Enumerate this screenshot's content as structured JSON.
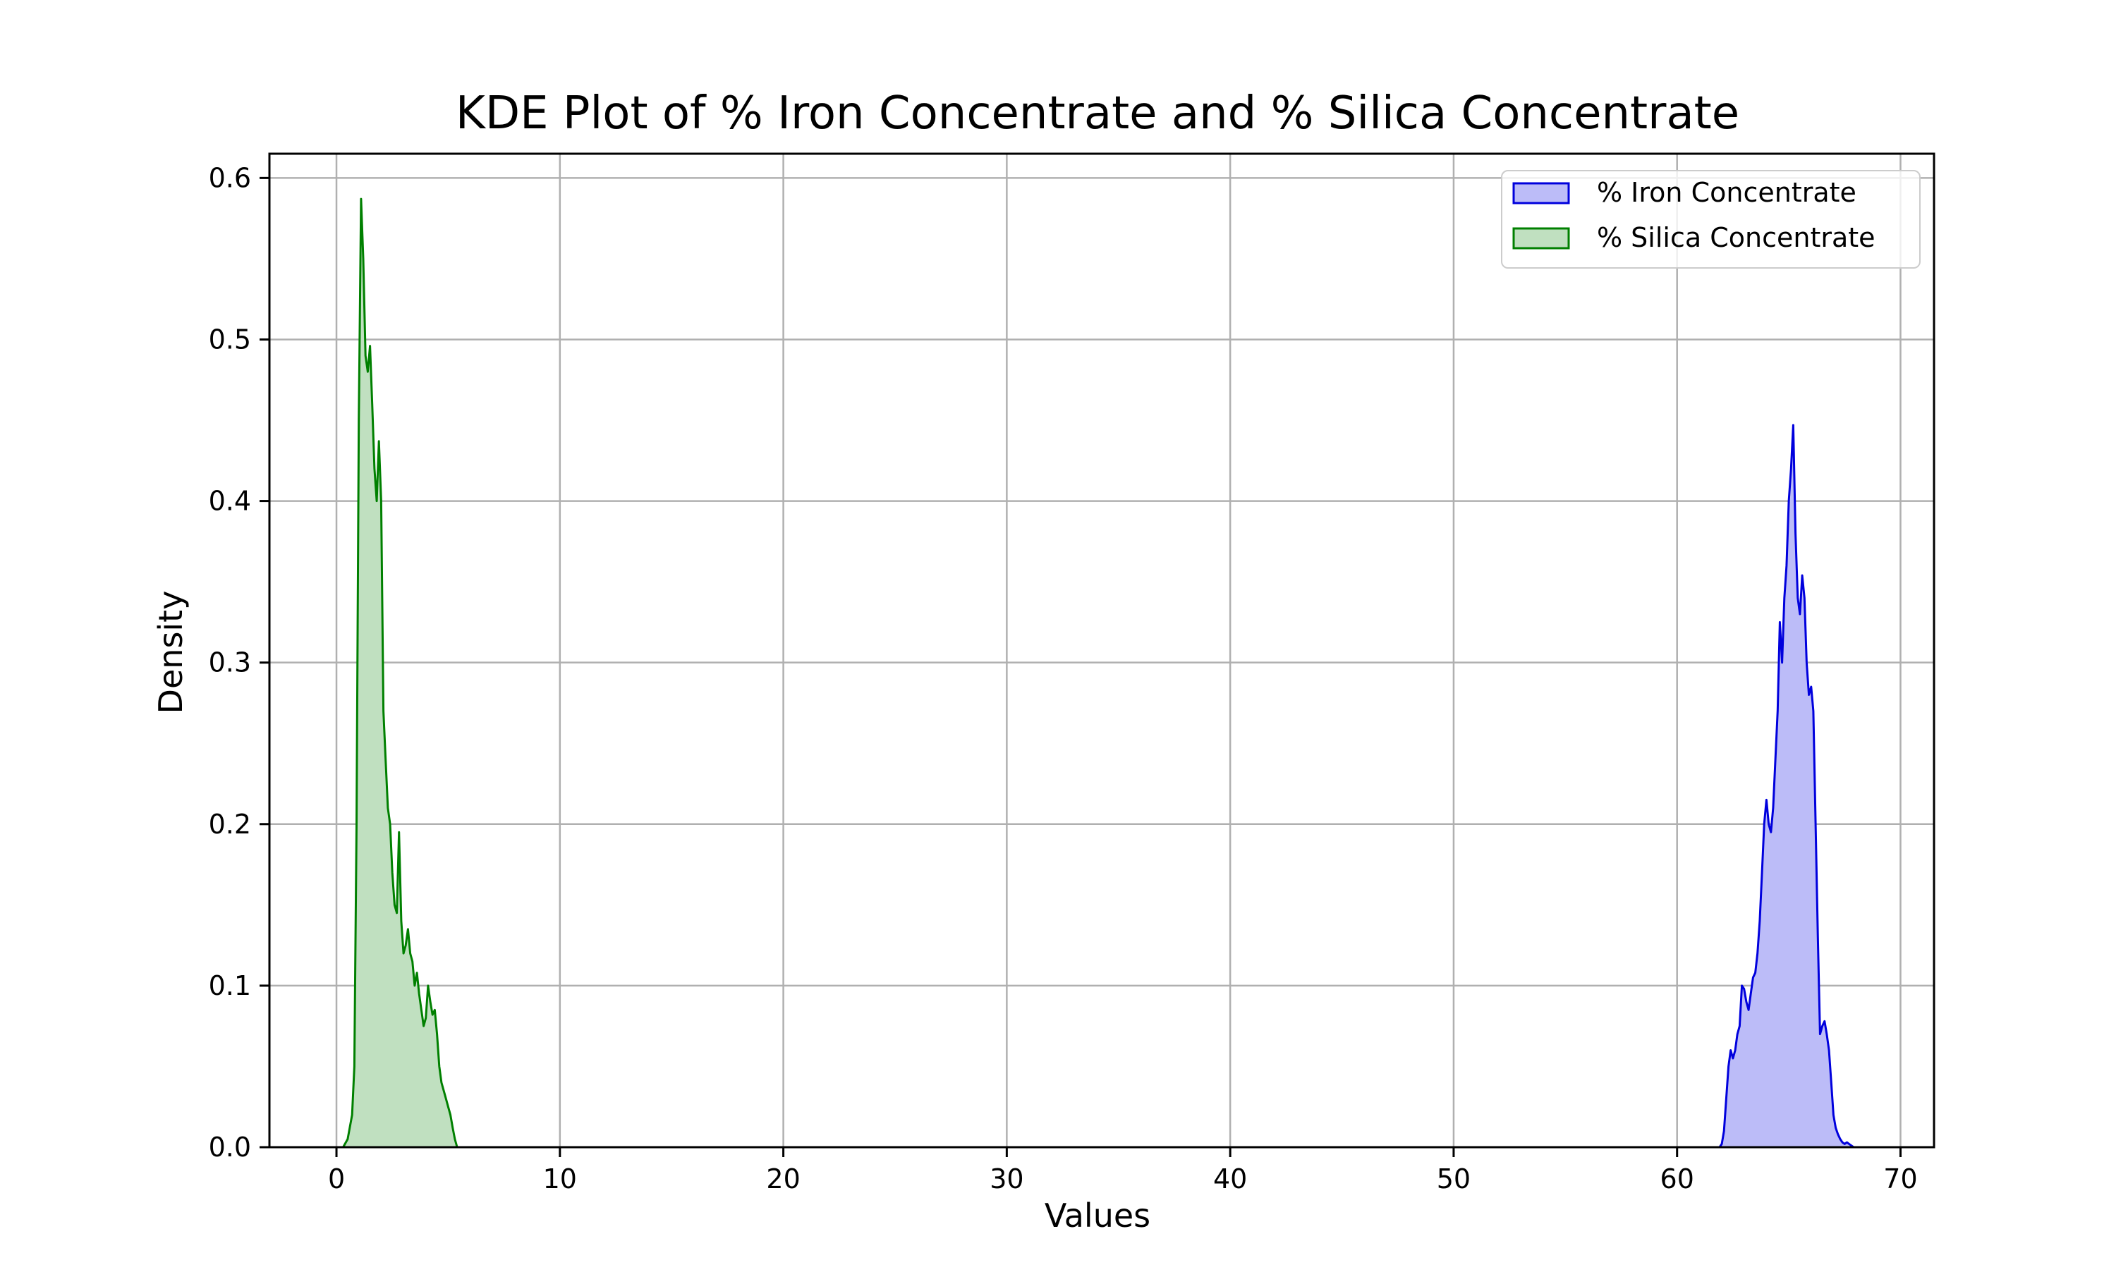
{
  "chart_data": {
    "type": "area",
    "title": "KDE Plot of % Iron Concentrate and % Silica Concentrate",
    "xlabel": "Values",
    "ylabel": "Density",
    "xlim": [
      -3,
      71.5
    ],
    "ylim": [
      0,
      0.615
    ],
    "xticks": [
      0,
      10,
      20,
      30,
      40,
      50,
      60,
      70
    ],
    "yticks": [
      0.0,
      0.1,
      0.2,
      0.3,
      0.4,
      0.5,
      0.6
    ],
    "xtick_labels": [
      "0",
      "10",
      "20",
      "30",
      "40",
      "50",
      "60",
      "70"
    ],
    "ytick_labels": [
      "0.0",
      "0.1",
      "0.2",
      "0.3",
      "0.4",
      "0.5",
      "0.6"
    ],
    "grid": true,
    "legend_position": "top-right",
    "series": [
      {
        "name": "% Iron Concentrate",
        "stroke": "#0000dd",
        "fill": "#bcbcf8",
        "x": [
          61.9,
          62.0,
          62.1,
          62.2,
          62.3,
          62.4,
          62.5,
          62.6,
          62.7,
          62.8,
          62.9,
          63.0,
          63.1,
          63.2,
          63.3,
          63.4,
          63.5,
          63.6,
          63.7,
          63.8,
          63.9,
          64.0,
          64.1,
          64.2,
          64.3,
          64.4,
          64.5,
          64.6,
          64.7,
          64.8,
          64.9,
          65.0,
          65.1,
          65.2,
          65.3,
          65.4,
          65.5,
          65.6,
          65.7,
          65.8,
          65.9,
          66.0,
          66.1,
          66.2,
          66.3,
          66.4,
          66.5,
          66.6,
          66.7,
          66.8,
          66.9,
          67.0,
          67.1,
          67.2,
          67.3,
          67.4,
          67.5,
          67.6,
          67.7,
          67.8,
          67.9,
          68.0,
          68.1
        ],
        "y": [
          0.0,
          0.002,
          0.01,
          0.03,
          0.05,
          0.06,
          0.055,
          0.06,
          0.07,
          0.075,
          0.1,
          0.098,
          0.09,
          0.085,
          0.095,
          0.105,
          0.108,
          0.12,
          0.14,
          0.17,
          0.2,
          0.215,
          0.2,
          0.195,
          0.21,
          0.24,
          0.27,
          0.325,
          0.3,
          0.34,
          0.36,
          0.4,
          0.42,
          0.447,
          0.38,
          0.34,
          0.33,
          0.354,
          0.34,
          0.3,
          0.28,
          0.285,
          0.27,
          0.2,
          0.13,
          0.07,
          0.075,
          0.078,
          0.07,
          0.06,
          0.04,
          0.02,
          0.012,
          0.008,
          0.005,
          0.003,
          0.002,
          0.003,
          0.002,
          0.001,
          0.0,
          0.0,
          0.0
        ]
      },
      {
        "name": "% Silica Concentrate",
        "stroke": "#008000",
        "fill": "#c0e0c0",
        "x": [
          0.0,
          0.3,
          0.5,
          0.7,
          0.8,
          0.9,
          1.0,
          1.1,
          1.2,
          1.3,
          1.4,
          1.5,
          1.6,
          1.7,
          1.8,
          1.9,
          2.0,
          2.1,
          2.2,
          2.3,
          2.4,
          2.5,
          2.6,
          2.7,
          2.8,
          2.9,
          3.0,
          3.1,
          3.2,
          3.3,
          3.4,
          3.5,
          3.6,
          3.7,
          3.8,
          3.9,
          4.0,
          4.1,
          4.2,
          4.3,
          4.4,
          4.5,
          4.6,
          4.7,
          4.8,
          4.9,
          5.0,
          5.1,
          5.2,
          5.3,
          5.4,
          5.5,
          5.6,
          5.7,
          5.8,
          6.0
        ],
        "y": [
          0.0,
          0.0,
          0.005,
          0.02,
          0.05,
          0.2,
          0.45,
          0.587,
          0.55,
          0.49,
          0.48,
          0.496,
          0.46,
          0.42,
          0.4,
          0.437,
          0.4,
          0.27,
          0.24,
          0.21,
          0.2,
          0.17,
          0.15,
          0.145,
          0.195,
          0.14,
          0.12,
          0.125,
          0.135,
          0.12,
          0.115,
          0.1,
          0.108,
          0.095,
          0.085,
          0.075,
          0.08,
          0.1,
          0.09,
          0.082,
          0.085,
          0.07,
          0.05,
          0.04,
          0.035,
          0.03,
          0.025,
          0.02,
          0.012,
          0.005,
          0.0,
          0.0,
          0.0,
          0.0,
          0.0,
          0.0
        ]
      }
    ]
  }
}
